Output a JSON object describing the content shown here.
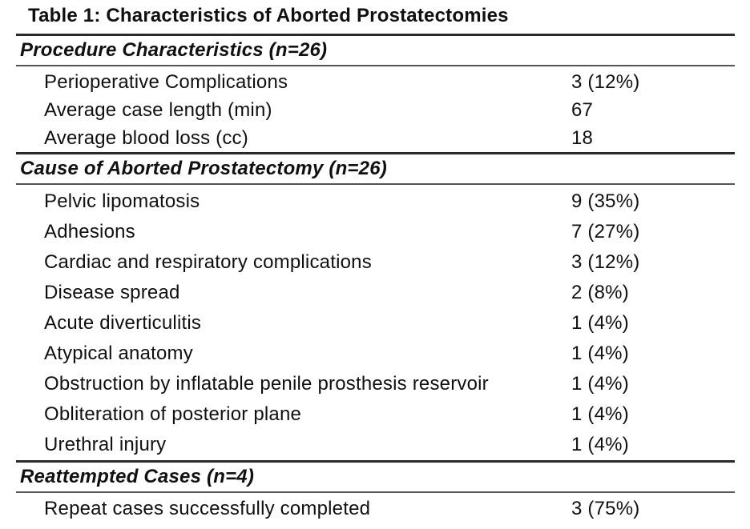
{
  "title": "Table 1: Characteristics of Aborted Prostatectomies",
  "table": {
    "sections": [
      {
        "header": "Procedure Characteristics (n=26)",
        "rows": [
          {
            "label": "Perioperative Complications",
            "value": "3 (12%)"
          },
          {
            "label": "Average case length (min)",
            "value": "67"
          },
          {
            "label": "Average blood loss (cc)",
            "value": "18"
          }
        ]
      },
      {
        "header": "Cause of Aborted Prostatectomy (n=26)",
        "rows": [
          {
            "label": "Pelvic lipomatosis",
            "value": "9 (35%)"
          },
          {
            "label": "Adhesions",
            "value": "7 (27%)"
          },
          {
            "label": "Cardiac and respiratory complications",
            "value": "3 (12%)"
          },
          {
            "label": "Disease spread",
            "value": "2 (8%)"
          },
          {
            "label": "Acute diverticulitis",
            "value": "1 (4%)"
          },
          {
            "label": "Atypical anatomy",
            "value": "1 (4%)"
          },
          {
            "label": "Obstruction by inflatable penile prosthesis reservoir",
            "value": "1 (4%)"
          },
          {
            "label": "Obliteration of posterior plane",
            "value": "1 (4%)"
          },
          {
            "label": "Urethral injury",
            "value": "1 (4%)"
          }
        ]
      },
      {
        "header": "Reattempted Cases (n=4)",
        "rows": [
          {
            "label": "Repeat cases successfully completed",
            "value": "3 (75%)"
          }
        ]
      }
    ]
  },
  "colors": {
    "text": "#101010",
    "rule_heavy": "#2a2a2a",
    "rule_light": "#555555",
    "background": "#ffffff"
  }
}
